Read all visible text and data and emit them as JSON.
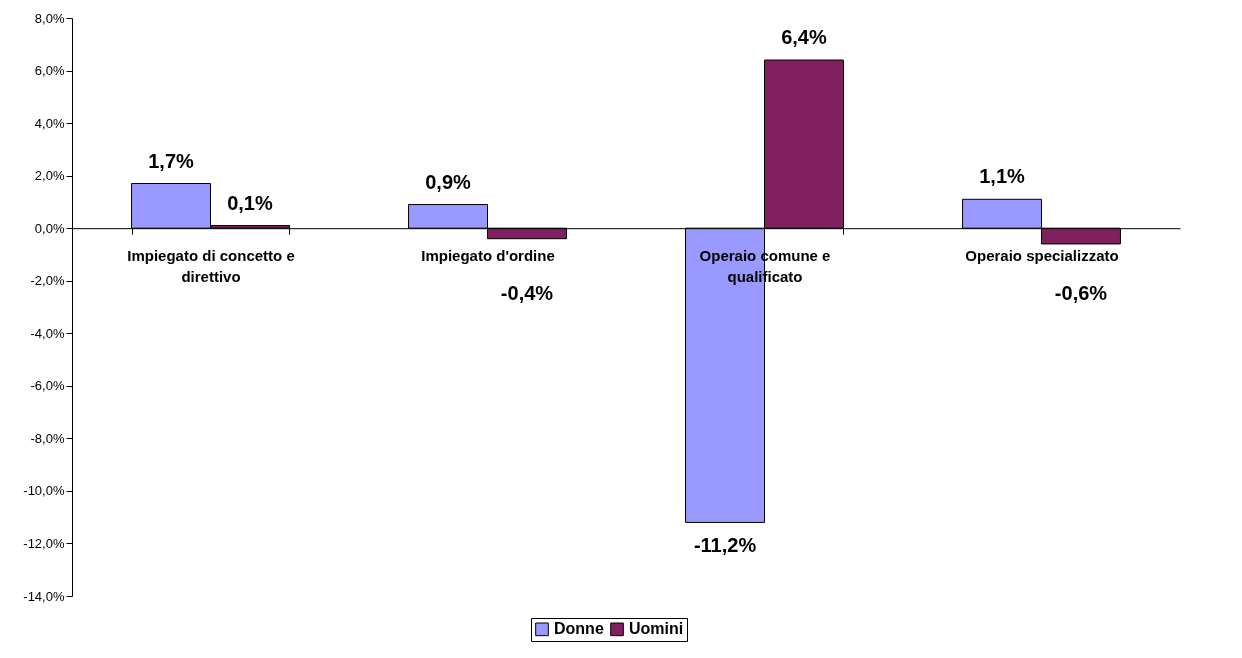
{
  "chart_data": {
    "type": "bar",
    "categories": [
      "Impiegato di concetto e direttivo",
      "Impiegato d'ordine",
      "Operaio comune e qualificato",
      "Operaio specializzato"
    ],
    "series": [
      {
        "name": "Donne",
        "color": "#9999ff",
        "values": [
          1.7,
          0.9,
          -11.2,
          1.1
        ],
        "value_labels": [
          "1,7%",
          "0,9%",
          "-11,2%",
          "1,1%"
        ]
      },
      {
        "name": "Uomini",
        "color": "#80205f",
        "values": [
          0.1,
          -0.4,
          6.4,
          -0.6
        ],
        "value_labels": [
          "0,1%",
          "-0,4%",
          "6,4%",
          "-0,6%"
        ]
      }
    ],
    "ylim": [
      -14,
      8
    ],
    "yticks": [
      {
        "value": -14,
        "label": "-14,0%"
      },
      {
        "value": -12,
        "label": "-12,0%"
      },
      {
        "value": -10,
        "label": "-10,0%"
      },
      {
        "value": -8,
        "label": "-8,0%"
      },
      {
        "value": -6,
        "label": "-6,0%"
      },
      {
        "value": -4,
        "label": "-4,0%"
      },
      {
        "value": -2,
        "label": "-2,0%"
      },
      {
        "value": 0,
        "label": "0,0%"
      },
      {
        "value": 2,
        "label": "2,0%"
      },
      {
        "value": 4,
        "label": "4,0%"
      },
      {
        "value": 6,
        "label": "6,0%"
      },
      {
        "value": 8,
        "label": "8,0%"
      }
    ],
    "grid": false,
    "legend": "bottom"
  }
}
